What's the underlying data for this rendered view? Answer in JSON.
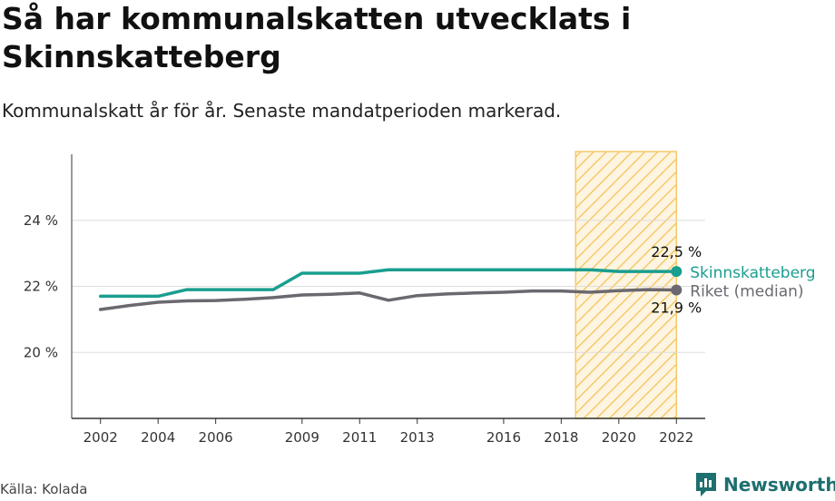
{
  "header": {
    "title": "Så har kommunalskatten utvecklats i Skinnskatteberg",
    "subtitle": "Kommunalskatt år för år. Senaste mandatperioden markerad."
  },
  "footer": {
    "source": "Källa: Kolada",
    "brand": "Newsworthy"
  },
  "colors": {
    "skinnskatteberg": "#1a9e8f",
    "riket": "#6b6870",
    "highlight_stroke": "#f5c96a",
    "grid": "#dddddd",
    "axis": "#333333"
  },
  "chart_data": {
    "type": "line",
    "title": "Så har kommunalskatten utvecklats i Skinnskatteberg",
    "subtitle": "Kommunalskatt år för år. Senaste mandatperioden markerad.",
    "xlabel": "",
    "ylabel": "",
    "ylim": [
      18.0,
      26.0
    ],
    "xlim": [
      2001.0,
      2023.0
    ],
    "grid": true,
    "y_ticks": [
      20,
      22,
      24
    ],
    "y_tick_labels": [
      "20 %",
      "22 %",
      "24 %"
    ],
    "x_ticks": [
      2002,
      2004,
      2006,
      2009,
      2011,
      2013,
      2016,
      2018,
      2020,
      2022
    ],
    "x_tick_labels": [
      "2002",
      "2004",
      "2006",
      "2009",
      "2011",
      "2013",
      "2016",
      "2018",
      "2020",
      "2022"
    ],
    "highlight_period": [
      2018.5,
      2022
    ],
    "x": [
      2002,
      2003,
      2004,
      2005,
      2006,
      2007,
      2008,
      2009,
      2010,
      2011,
      2012,
      2013,
      2014,
      2015,
      2016,
      2017,
      2018,
      2019,
      2020,
      2021,
      2022
    ],
    "series": [
      {
        "name": "Skinnskatteberg",
        "color": "#1a9e8f",
        "values": [
          21.7,
          21.7,
          21.7,
          21.9,
          21.9,
          21.9,
          21.9,
          22.4,
          22.4,
          22.4,
          22.5,
          22.5,
          22.5,
          22.5,
          22.5,
          22.5,
          22.5,
          22.5,
          22.45,
          22.45,
          22.45
        ],
        "end_label": "22,5 %"
      },
      {
        "name": "Riket (median)",
        "color": "#6b6870",
        "values": [
          21.3,
          21.42,
          21.52,
          21.56,
          21.57,
          21.61,
          21.66,
          21.74,
          21.76,
          21.8,
          21.58,
          21.72,
          21.77,
          21.8,
          21.82,
          21.86,
          21.86,
          21.82,
          21.87,
          21.9,
          21.89
        ],
        "end_label": "21,9 %"
      }
    ]
  }
}
